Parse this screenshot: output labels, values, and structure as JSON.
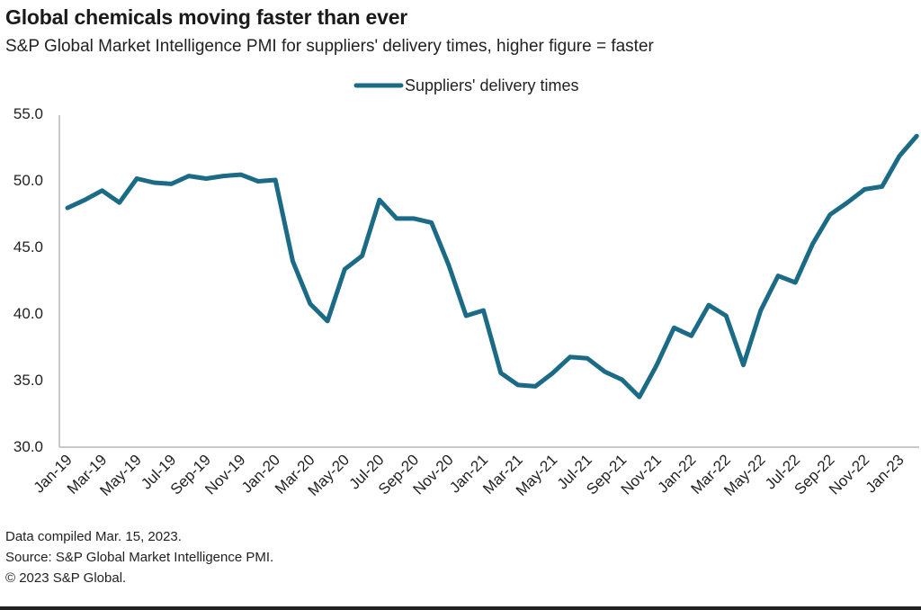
{
  "header": {
    "title": "Global chemicals moving faster than ever",
    "subtitle": "S&P Global Market Intelligence PMI for suppliers' delivery times, higher figure = faster"
  },
  "footer": {
    "lines": [
      "Data compiled Mar. 15, 2023.",
      "Source: S&P Global Market Intelligence PMI.",
      "© 2023 S&P Global."
    ]
  },
  "chart_data": {
    "type": "line",
    "title": "Global chemicals moving faster than ever",
    "subtitle": "S&P Global Market Intelligence PMI for suppliers' delivery times, higher figure = faster",
    "xlabel": "",
    "ylabel": "",
    "ylim": [
      30,
      55
    ],
    "yticks": [
      "55.0",
      "50.0",
      "45.0",
      "40.0",
      "35.0",
      "30.0"
    ],
    "ytick_values": [
      55,
      50,
      45,
      40,
      35,
      30
    ],
    "grid": false,
    "legend": {
      "position": "top-center",
      "entries": [
        "Suppliers' delivery times"
      ]
    },
    "series_color": "#1b6b86",
    "xtick_labels": [
      "Jan-19",
      "Mar-19",
      "May-19",
      "Jul-19",
      "Sep-19",
      "Nov-19",
      "Jan-20",
      "Mar-20",
      "May-20",
      "Jul-20",
      "Sep-20",
      "Nov-20",
      "Jan-21",
      "Mar-21",
      "May-21",
      "Jul-21",
      "Sep-21",
      "Nov-21",
      "Jan-22",
      "Mar-22",
      "May-22",
      "Jul-22",
      "Sep-22",
      "Nov-22",
      "Jan-23"
    ],
    "x": [
      "Jan-19",
      "Feb-19",
      "Mar-19",
      "Apr-19",
      "May-19",
      "Jun-19",
      "Jul-19",
      "Aug-19",
      "Sep-19",
      "Oct-19",
      "Nov-19",
      "Dec-19",
      "Jan-20",
      "Feb-20",
      "Mar-20",
      "Apr-20",
      "May-20",
      "Jun-20",
      "Jul-20",
      "Aug-20",
      "Sep-20",
      "Oct-20",
      "Nov-20",
      "Dec-20",
      "Jan-21",
      "Feb-21",
      "Mar-21",
      "Apr-21",
      "May-21",
      "Jun-21",
      "Jul-21",
      "Aug-21",
      "Sep-21",
      "Oct-21",
      "Nov-21",
      "Dec-21",
      "Jan-22",
      "Feb-22",
      "Mar-22",
      "Apr-22",
      "May-22",
      "Jun-22",
      "Jul-22",
      "Aug-22",
      "Sep-22",
      "Oct-22",
      "Nov-22",
      "Dec-22",
      "Jan-23",
      "Feb-23"
    ],
    "series": [
      {
        "name": "Suppliers' delivery times",
        "values": [
          47.9,
          48.5,
          49.2,
          48.3,
          50.1,
          49.8,
          49.7,
          50.3,
          50.1,
          50.3,
          50.4,
          49.9,
          50.0,
          43.9,
          40.7,
          39.4,
          43.3,
          44.3,
          48.5,
          47.1,
          47.1,
          46.8,
          43.6,
          39.8,
          40.2,
          35.5,
          34.6,
          34.5,
          35.5,
          36.7,
          36.6,
          35.6,
          35.0,
          33.7,
          36.1,
          38.9,
          38.3,
          40.6,
          39.8,
          36.1,
          40.2,
          42.8,
          42.3,
          45.2,
          47.4,
          48.3,
          49.3,
          49.5,
          51.8,
          53.3
        ]
      }
    ]
  }
}
